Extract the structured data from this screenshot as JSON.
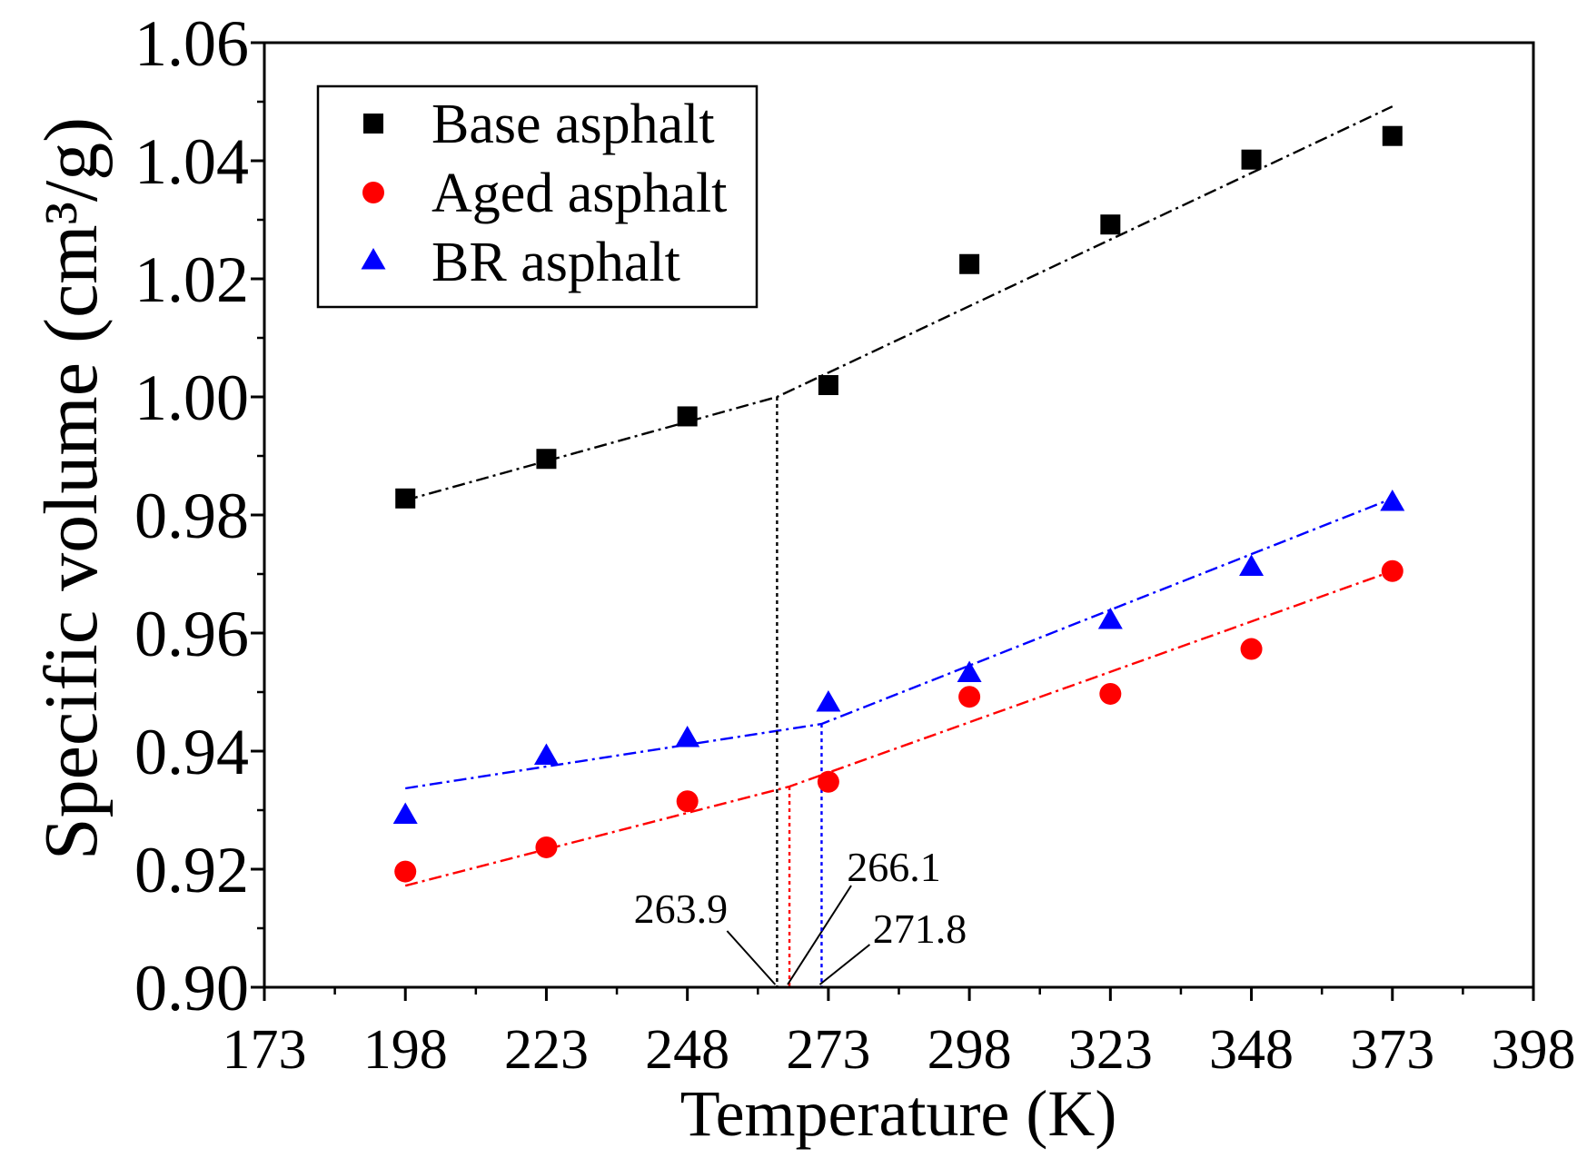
{
  "chart_data": {
    "type": "scatter",
    "title": "",
    "xlabel": "Temperature (K)",
    "ylabel": "Specific volume (cm³/g)",
    "xlim": [
      173,
      398
    ],
    "ylim": [
      0.9,
      1.06
    ],
    "x_ticks": [
      "173",
      "198",
      "223",
      "248",
      "273",
      "298",
      "323",
      "348",
      "373",
      "398"
    ],
    "y_ticks": [
      "0.90",
      "0.92",
      "0.94",
      "0.96",
      "0.98",
      "1.00",
      "1.02",
      "1.04",
      "1.06"
    ],
    "grid": false,
    "legend_position": "top-left",
    "x": [
      198,
      223,
      248,
      273,
      298,
      323,
      348,
      373
    ],
    "series": [
      {
        "name": "Base asphalt",
        "marker": "square",
        "color": "#000000",
        "values": [
          0.9828,
          0.9895,
          0.9967,
          1.002,
          1.0225,
          1.0292,
          1.0402,
          1.0442
        ],
        "fit": [
          [
            198,
            0.9825
          ],
          [
            263.9,
            1.0
          ],
          [
            373,
            1.0492
          ]
        ]
      },
      {
        "name": "Aged asphalt",
        "marker": "circle",
        "color": "#ff0000",
        "values": [
          0.9196,
          0.9237,
          0.9315,
          0.9348,
          0.9492,
          0.9497,
          0.9573,
          0.9705
        ],
        "fit": [
          [
            198,
            0.9172
          ],
          [
            266.1,
            0.934
          ],
          [
            373,
            0.9705
          ]
        ]
      },
      {
        "name": "BR asphalt",
        "marker": "triangle",
        "color": "#0000ff",
        "values": [
          0.929,
          0.939,
          0.942,
          0.948,
          0.953,
          0.962,
          0.971,
          0.982
        ],
        "fit": [
          [
            198,
            0.9337
          ],
          [
            271.8,
            0.9446
          ],
          [
            373,
            0.9828
          ]
        ]
      }
    ],
    "annotations": [
      {
        "label": "263.9",
        "x": 263.9,
        "y": 1.0,
        "color": "#000000"
      },
      {
        "label": "266.1",
        "x": 266.1,
        "y": 0.934,
        "color": "#ff0000"
      },
      {
        "label": "271.8",
        "x": 271.8,
        "y": 0.9446,
        "color": "#0000ff"
      }
    ]
  }
}
